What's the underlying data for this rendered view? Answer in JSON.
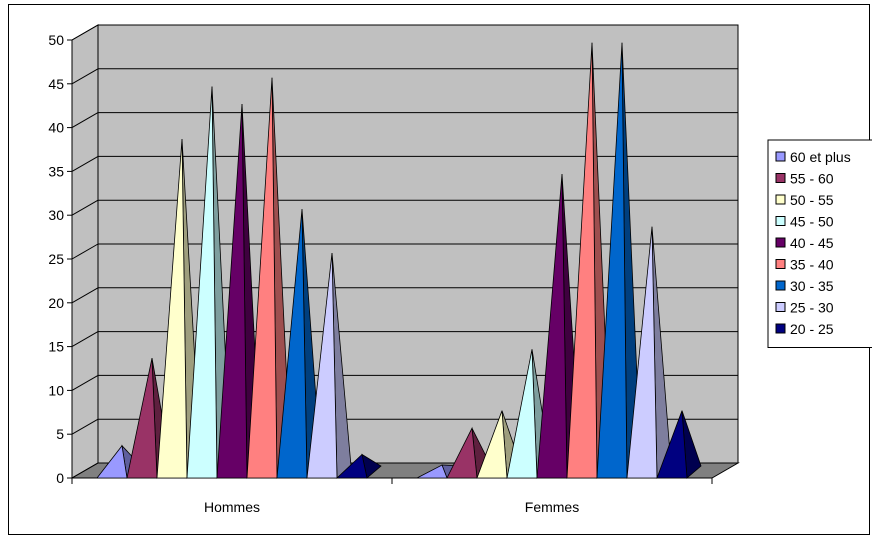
{
  "chart_data": {
    "type": "bar",
    "style": "3d-pyramid",
    "categories": [
      "Hommes",
      "Femmes"
    ],
    "series": [
      {
        "name": "60 et plus",
        "color": "#9999FF",
        "values": [
          3,
          0
        ]
      },
      {
        "name": "55 - 60",
        "color": "#993366",
        "values": [
          13,
          5
        ]
      },
      {
        "name": "50 - 55",
        "color": "#FFFFCC",
        "values": [
          38,
          7
        ]
      },
      {
        "name": "45 - 50",
        "color": "#CCFFFF",
        "values": [
          44,
          14
        ]
      },
      {
        "name": "40 - 45",
        "color": "#660066",
        "values": [
          42,
          34
        ]
      },
      {
        "name": "35 - 40",
        "color": "#FF8080",
        "values": [
          45,
          49
        ]
      },
      {
        "name": "30 - 35",
        "color": "#0066CC",
        "values": [
          30,
          49
        ]
      },
      {
        "name": "25 - 30",
        "color": "#CCCCFF",
        "values": [
          25,
          28
        ]
      },
      {
        "name": "20 - 25",
        "color": "#000080",
        "values": [
          2,
          7
        ]
      }
    ],
    "yticks": [
      0,
      5,
      10,
      15,
      20,
      25,
      30,
      35,
      40,
      45,
      50
    ],
    "ylim": [
      0,
      50
    ],
    "grid": true,
    "legend_position": "right",
    "wall_color": "#C0C0C0",
    "floor_color": "#808080",
    "title": "",
    "xlabel": "",
    "ylabel": ""
  }
}
